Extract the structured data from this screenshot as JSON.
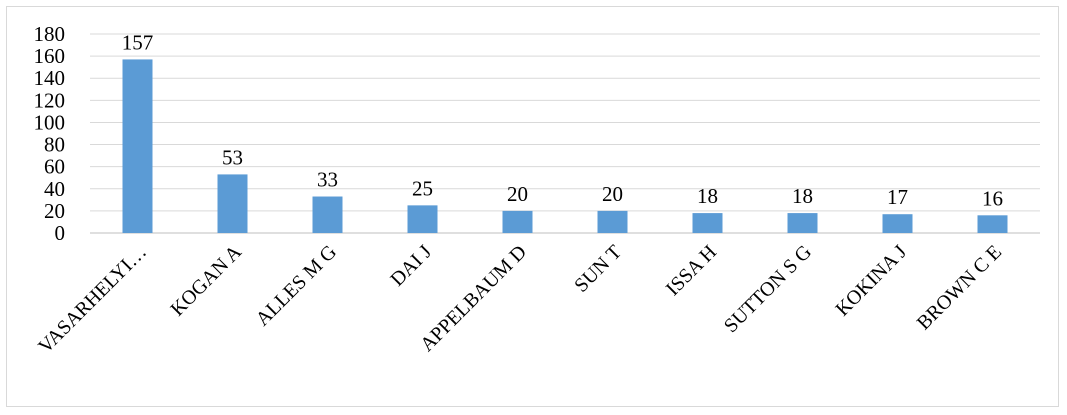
{
  "chart_data": {
    "type": "bar",
    "title": "",
    "xlabel": "",
    "ylabel": "",
    "categories": [
      "VASARHELYI…",
      "KOGAN A",
      "ALLES M G",
      "DAI J",
      "APPELBAUM D",
      "SUN T",
      "ISSA H",
      "SUTTON S G",
      "KOKINA J",
      "BROWN C E"
    ],
    "values": [
      157,
      53,
      33,
      25,
      20,
      20,
      18,
      18,
      17,
      16
    ],
    "data_labels": [
      "157",
      "53",
      "33",
      "25",
      "20",
      "20",
      "18",
      "18",
      "17",
      "16"
    ],
    "y_ticks": [
      "0",
      "20",
      "40",
      "60",
      "80",
      "100",
      "120",
      "140",
      "160",
      "180"
    ],
    "ylim": [
      0,
      180
    ],
    "bar_color": "#5b9bd5",
    "grid_color": "#d9d9d9",
    "grid": true,
    "legend": "none"
  }
}
